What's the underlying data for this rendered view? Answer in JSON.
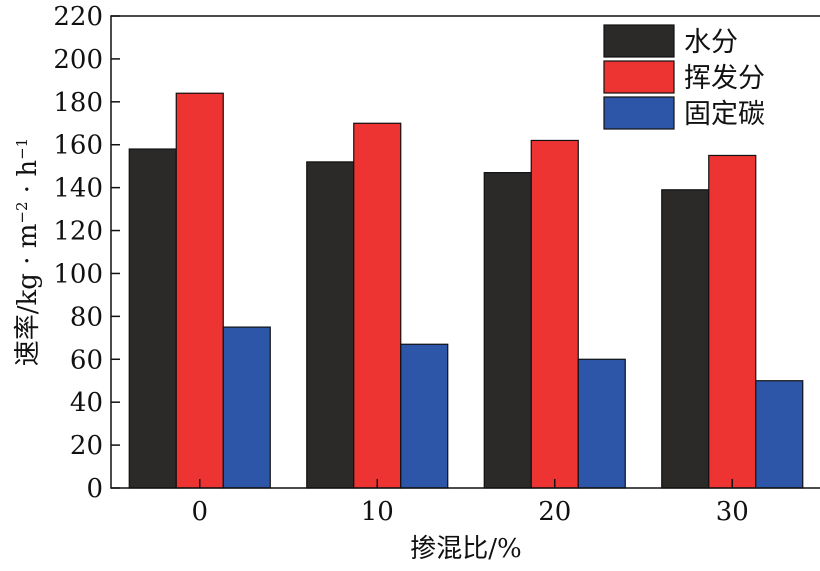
{
  "chart_data": {
    "type": "bar",
    "title": "",
    "xlabel": "掺混比/%",
    "ylabel_main": "速率/kg · m",
    "ylabel_m_exp": "−2",
    "ylabel_mid": " · h",
    "ylabel_h_exp": "−1",
    "categories": [
      "0",
      "10",
      "20",
      "30"
    ],
    "ylim": [
      0,
      220
    ],
    "yticks": [
      0,
      20,
      40,
      60,
      80,
      100,
      120,
      140,
      160,
      180,
      200,
      220
    ],
    "grid": false,
    "legend_position": "top-right",
    "series": [
      {
        "name": "水分",
        "color": "#2b2a29",
        "values": [
          158,
          152,
          147,
          139
        ]
      },
      {
        "name": "挥发分",
        "color": "#ee3433",
        "values": [
          184,
          170,
          162,
          155
        ]
      },
      {
        "name": "固定碳",
        "color": "#2d56a8",
        "values": [
          75,
          67,
          60,
          50
        ]
      }
    ]
  }
}
